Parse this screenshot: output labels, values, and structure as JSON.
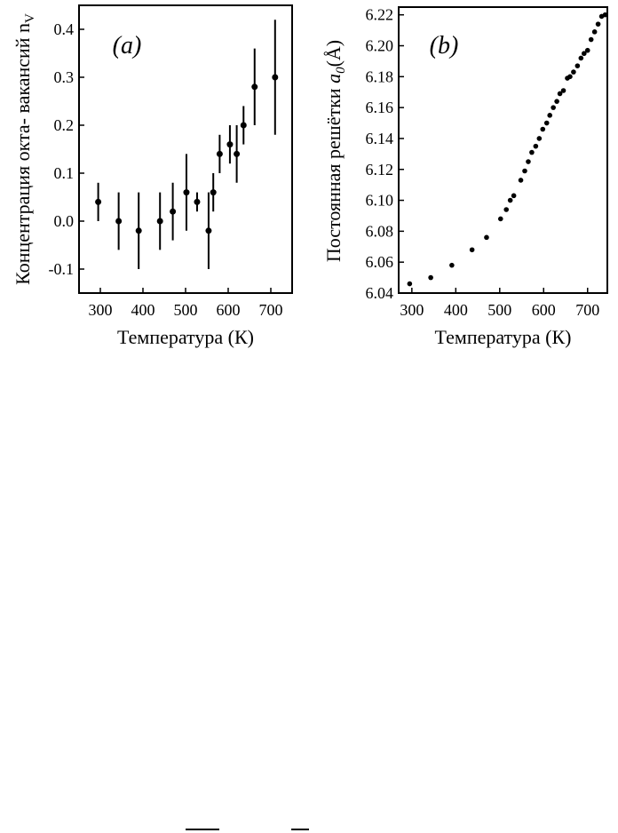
{
  "chart_data": [
    {
      "panel_label": "(a)",
      "type": "scatter",
      "xlabel": "Температура (К)",
      "ylabel": "Концентрация окта- вакансий n",
      "ylabel_subscript": "V",
      "xlim": [
        250,
        750
      ],
      "ylim": [
        -0.15,
        0.45
      ],
      "xticks": [
        300,
        400,
        500,
        600,
        700
      ],
      "yticks": [
        -0.1,
        0.0,
        0.1,
        0.2,
        0.3,
        0.4
      ],
      "ytick_labels": [
        "-0.1",
        "0.0",
        "0.1",
        "0.2",
        "0.3",
        "0.4"
      ],
      "error_bars": true,
      "points": [
        {
          "x": 295,
          "y": 0.04,
          "err": 0.04
        },
        {
          "x": 343,
          "y": 0.0,
          "err": 0.06
        },
        {
          "x": 390,
          "y": -0.02,
          "err": 0.08
        },
        {
          "x": 440,
          "y": 0.0,
          "err": 0.06
        },
        {
          "x": 470,
          "y": 0.02,
          "err": 0.06
        },
        {
          "x": 502,
          "y": 0.06,
          "err": 0.08
        },
        {
          "x": 527,
          "y": 0.04,
          "err": 0.02
        },
        {
          "x": 554,
          "y": -0.02,
          "err": 0.08
        },
        {
          "x": 565,
          "y": 0.06,
          "err": 0.04
        },
        {
          "x": 580,
          "y": 0.14,
          "err": 0.04
        },
        {
          "x": 604,
          "y": 0.16,
          "err": 0.04
        },
        {
          "x": 620,
          "y": 0.14,
          "err": 0.06
        },
        {
          "x": 636,
          "y": 0.2,
          "err": 0.04
        },
        {
          "x": 662,
          "y": 0.28,
          "err": 0.08
        },
        {
          "x": 710,
          "y": 0.3,
          "err": 0.12
        }
      ]
    },
    {
      "panel_label": "(b)",
      "type": "scatter",
      "xlabel": "Температура (К)",
      "ylabel": "Постоянная решётки a",
      "ylabel_subscript": "0",
      "ylabel_unit": "(Å)",
      "xlim": [
        270,
        745
      ],
      "ylim": [
        6.04,
        6.225
      ],
      "xticks": [
        300,
        400,
        500,
        600,
        700
      ],
      "yticks": [
        6.04,
        6.06,
        6.08,
        6.1,
        6.12,
        6.14,
        6.16,
        6.18,
        6.2,
        6.22
      ],
      "ytick_labels": [
        "6.04",
        "6.06",
        "6.08",
        "6.10",
        "6.12",
        "6.14",
        "6.16",
        "6.18",
        "6.20",
        "6.22"
      ],
      "points": [
        {
          "x": 295,
          "y": 6.046
        },
        {
          "x": 343,
          "y": 6.05
        },
        {
          "x": 391,
          "y": 6.058
        },
        {
          "x": 437,
          "y": 6.068
        },
        {
          "x": 470,
          "y": 6.076
        },
        {
          "x": 502,
          "y": 6.088
        },
        {
          "x": 515,
          "y": 6.094
        },
        {
          "x": 524,
          "y": 6.1
        },
        {
          "x": 532,
          "y": 6.103
        },
        {
          "x": 548,
          "y": 6.113
        },
        {
          "x": 557,
          "y": 6.119
        },
        {
          "x": 565,
          "y": 6.125
        },
        {
          "x": 573,
          "y": 6.131
        },
        {
          "x": 582,
          "y": 6.135
        },
        {
          "x": 590,
          "y": 6.14
        },
        {
          "x": 598,
          "y": 6.146
        },
        {
          "x": 607,
          "y": 6.15
        },
        {
          "x": 614,
          "y": 6.155
        },
        {
          "x": 622,
          "y": 6.16
        },
        {
          "x": 630,
          "y": 6.164
        },
        {
          "x": 637,
          "y": 6.169
        },
        {
          "x": 645,
          "y": 6.171
        },
        {
          "x": 654,
          "y": 6.179
        },
        {
          "x": 660,
          "y": 6.18
        },
        {
          "x": 668,
          "y": 6.183
        },
        {
          "x": 677,
          "y": 6.187
        },
        {
          "x": 685,
          "y": 6.192
        },
        {
          "x": 692,
          "y": 6.195
        },
        {
          "x": 700,
          "y": 6.197
        },
        {
          "x": 708,
          "y": 6.204
        },
        {
          "x": 716,
          "y": 6.209
        },
        {
          "x": 724,
          "y": 6.214
        },
        {
          "x": 732,
          "y": 6.219
        },
        {
          "x": 740,
          "y": 6.22
        }
      ]
    }
  ]
}
